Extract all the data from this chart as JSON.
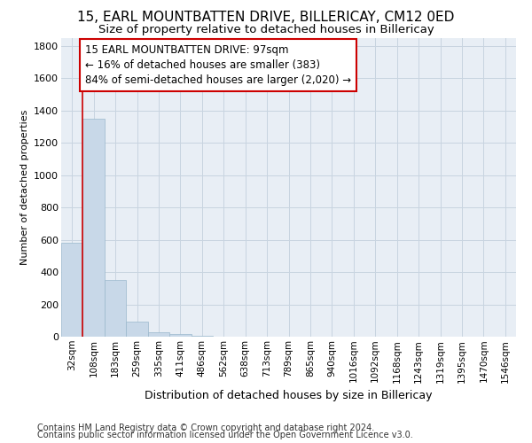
{
  "title": "15, EARL MOUNTBATTEN DRIVE, BILLERICAY, CM12 0ED",
  "subtitle": "Size of property relative to detached houses in Billericay",
  "xlabel": "Distribution of detached houses by size in Billericay",
  "ylabel": "Number of detached properties",
  "categories": [
    "32sqm",
    "108sqm",
    "183sqm",
    "259sqm",
    "335sqm",
    "411sqm",
    "486sqm",
    "562sqm",
    "638sqm",
    "713sqm",
    "789sqm",
    "865sqm",
    "940sqm",
    "1016sqm",
    "1092sqm",
    "1168sqm",
    "1243sqm",
    "1319sqm",
    "1395sqm",
    "1470sqm",
    "1546sqm"
  ],
  "values": [
    580,
    1350,
    350,
    95,
    30,
    18,
    8,
    0,
    0,
    0,
    0,
    0,
    0,
    0,
    0,
    0,
    0,
    0,
    0,
    0,
    0
  ],
  "bar_color": "#c8d8e8",
  "bar_edge_color": "#9ab8cc",
  "highlight_line_color": "#cc0000",
  "annotation_line1": "15 EARL MOUNTBATTEN DRIVE: 97sqm",
  "annotation_line2": "← 16% of detached houses are smaller (383)",
  "annotation_line3": "84% of semi-detached houses are larger (2,020) →",
  "annotation_box_color": "#ffffff",
  "annotation_box_edge_color": "#cc0000",
  "ylim": [
    0,
    1850
  ],
  "yticks": [
    0,
    200,
    400,
    600,
    800,
    1000,
    1200,
    1400,
    1600,
    1800
  ],
  "footer_line1": "Contains HM Land Registry data © Crown copyright and database right 2024.",
  "footer_line2": "Contains public sector information licensed under the Open Government Licence v3.0.",
  "bg_color": "#ffffff",
  "plot_bg_color": "#e8eef5",
  "grid_color": "#c8d4e0",
  "title_fontsize": 11,
  "subtitle_fontsize": 9.5,
  "tick_fontsize": 7.5,
  "ylabel_fontsize": 8,
  "xlabel_fontsize": 9,
  "footer_fontsize": 7,
  "annotation_fontsize": 8.5
}
